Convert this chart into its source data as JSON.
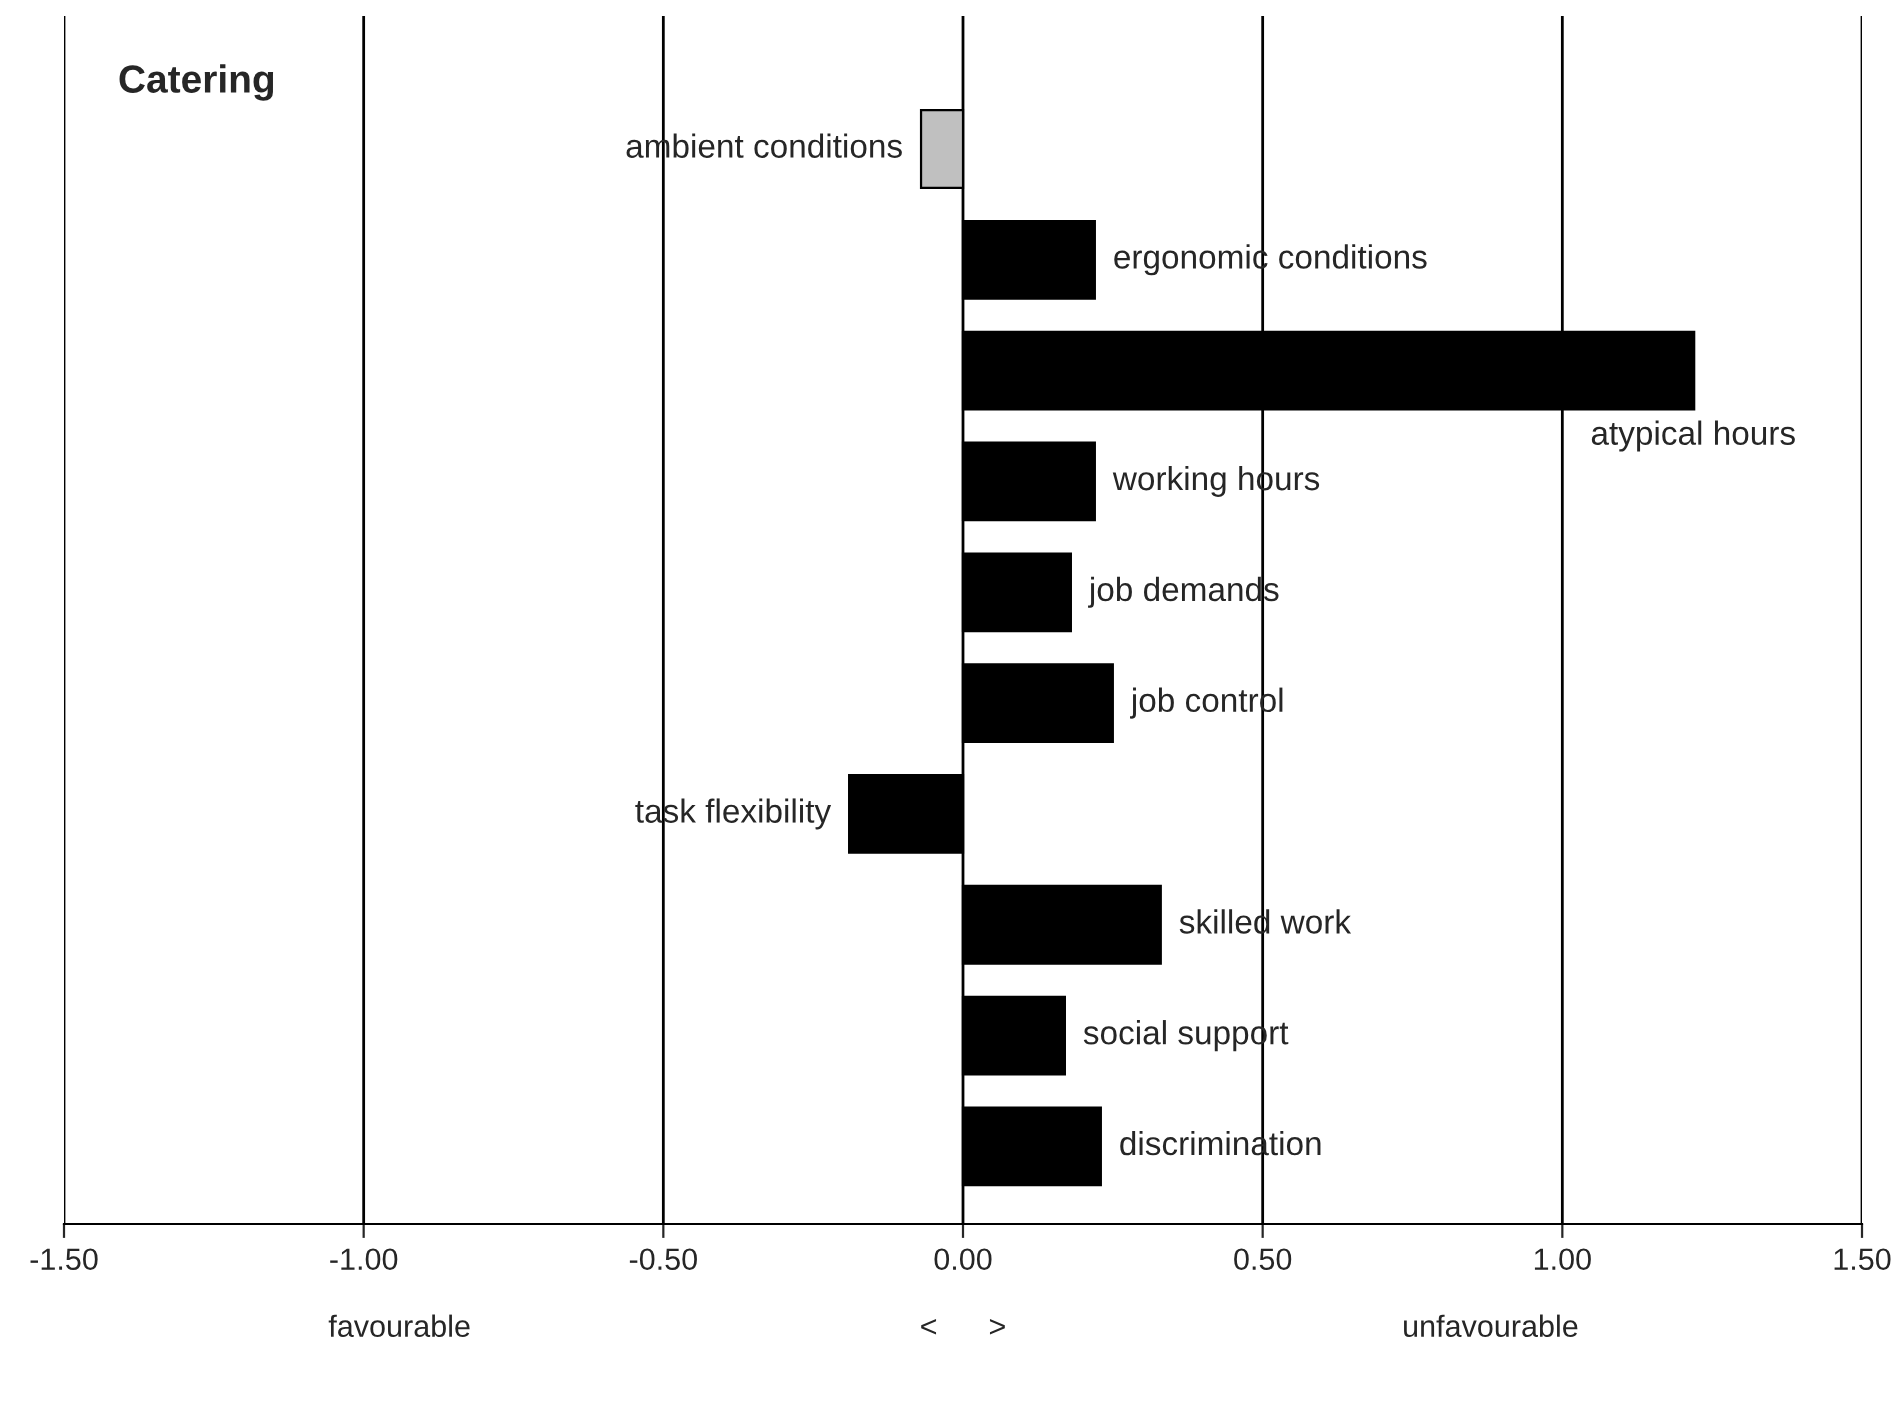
{
  "chart_data": {
    "type": "bar",
    "orientation": "horizontal",
    "title": "Catering",
    "categories": [
      "ambient conditions",
      "ergonomic conditions",
      "atypical hours",
      "working hours",
      "job demands",
      "job control",
      "task flexibility",
      "skilled work",
      "social support",
      "discrimination"
    ],
    "values": [
      -0.07,
      0.22,
      1.22,
      0.22,
      0.18,
      0.25,
      -0.19,
      0.33,
      0.17,
      0.23
    ],
    "colors": [
      "#c0c0c0",
      "#000000",
      "#000000",
      "#000000",
      "#000000",
      "#000000",
      "#000000",
      "#000000",
      "#000000",
      "#000000"
    ],
    "xlim": [
      -1.5,
      1.5
    ],
    "xticks": [
      {
        "value": -1.5,
        "label": "-1.50"
      },
      {
        "value": -1.0,
        "label": "-1.00"
      },
      {
        "value": -0.5,
        "label": "-0.50"
      },
      {
        "value": 0.0,
        "label": "0.00"
      },
      {
        "value": 0.5,
        "label": "0.50"
      },
      {
        "value": 1.0,
        "label": "1.00"
      },
      {
        "value": 1.5,
        "label": "1.50"
      }
    ],
    "grid": "x",
    "annotations": [
      "favourable",
      "<      >",
      "unfavourable"
    ]
  }
}
